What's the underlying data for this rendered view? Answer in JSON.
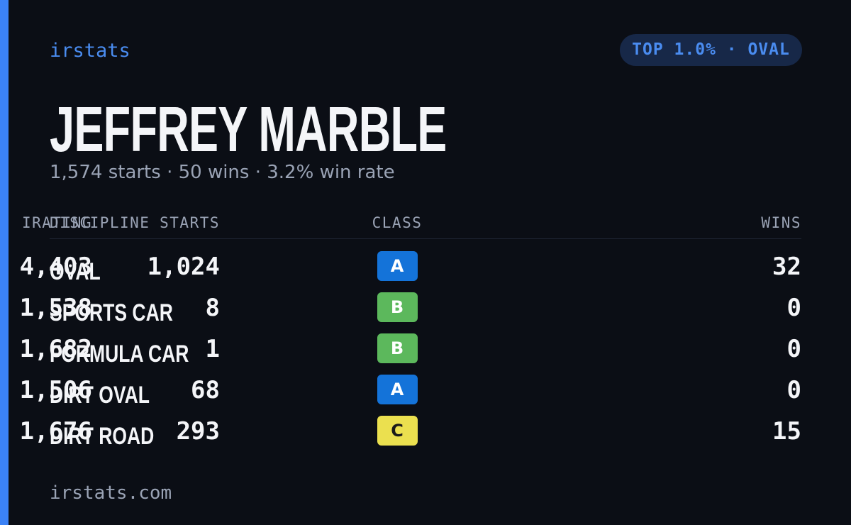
{
  "header": {
    "brand": "irstats",
    "badge": "TOP 1.0% · OVAL"
  },
  "driver": {
    "name": "JEFFREY MARBLE",
    "summary": "1,574 starts · 50 wins · 3.2% win rate"
  },
  "table": {
    "columns": [
      "DISCIPLINE",
      "CLASS",
      "IRATING",
      "STARTS",
      "WINS"
    ],
    "rows": [
      {
        "discipline": "OVAL",
        "class": "A",
        "class_color": "#1473d9",
        "irating": "4,403",
        "starts": "1,024",
        "wins": "32"
      },
      {
        "discipline": "SPORTS CAR",
        "class": "B",
        "class_color": "#5cb85c",
        "irating": "1,538",
        "starts": "8",
        "wins": "0"
      },
      {
        "discipline": "FORMULA CAR",
        "class": "B",
        "class_color": "#5cb85c",
        "irating": "1,682",
        "starts": "1",
        "wins": "0"
      },
      {
        "discipline": "DIRT OVAL",
        "class": "A",
        "class_color": "#1473d9",
        "irating": "1,506",
        "starts": "68",
        "wins": "0"
      },
      {
        "discipline": "DIRT ROAD",
        "class": "C",
        "class_color": "#ebe04f",
        "irating": "1,676",
        "starts": "293",
        "wins": "15"
      }
    ]
  },
  "footer": {
    "site": "irstats.com"
  }
}
